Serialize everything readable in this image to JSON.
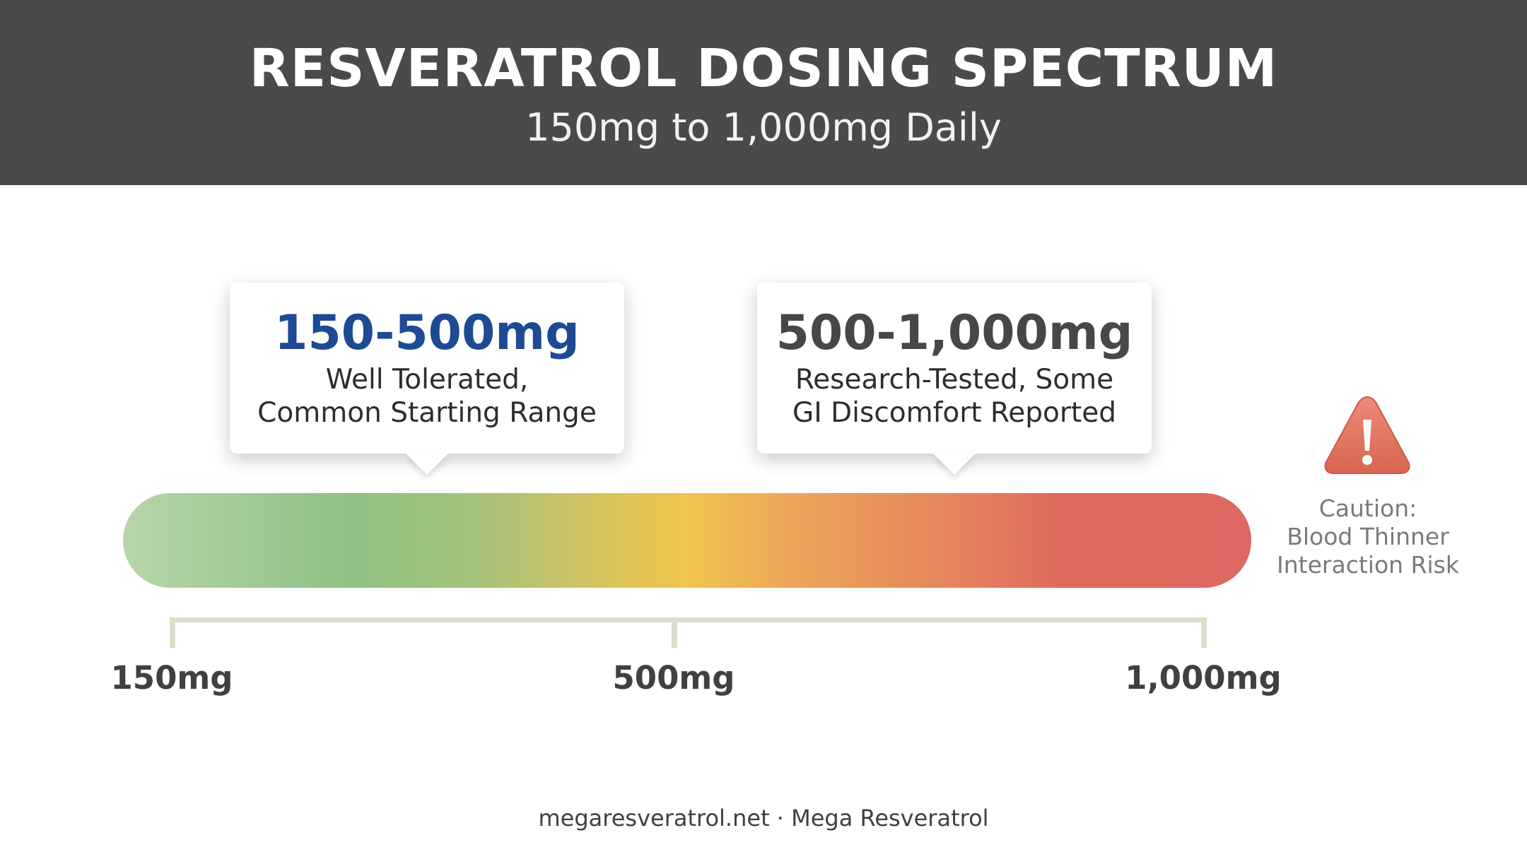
{
  "header": {
    "title": "RESVERATROL DOSING SPECTRUM",
    "subtitle": "150mg to 1,000mg Daily"
  },
  "callouts": [
    {
      "range": "150-500mg",
      "line1": "Well Tolerated,",
      "line2": "Common Starting Range",
      "accent": "#1e4a93"
    },
    {
      "range": "500-1,000mg",
      "line1": "Research-Tested, Some",
      "line2": "GI Discomfort Reported",
      "accent": "#474747"
    }
  ],
  "axis": {
    "ticks": [
      "150mg",
      "500mg",
      "1,000mg"
    ],
    "gradient_colors": [
      "#b7d5a9",
      "#8ec182",
      "#efc54c",
      "#e5855c",
      "#dd6962"
    ]
  },
  "caution": {
    "icon": "warning-triangle-icon",
    "line1": "Caution:",
    "line2": "Blood Thinner",
    "line3": "Interaction Risk"
  },
  "footer": {
    "text": "megaresveratrol.net · Mega Resveratrol"
  }
}
